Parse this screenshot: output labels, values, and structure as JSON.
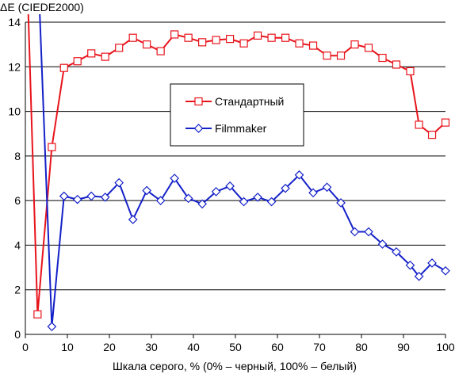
{
  "chart_data": {
    "type": "line",
    "title": "",
    "ylabel": "ΔE (CIEDE2000)",
    "xlabel": "Шкала серого, % (0% – черный, 100% – белый)",
    "xlim": [
      0,
      100
    ],
    "ylim": [
      0,
      14
    ],
    "xticks": [
      0,
      10,
      20,
      30,
      40,
      50,
      60,
      70,
      80,
      90,
      100
    ],
    "yticks": [
      0,
      2,
      4,
      6,
      8,
      10,
      12,
      14
    ],
    "grid": "horizontal",
    "legend_position": "center-right",
    "series": [
      {
        "name": "Стандартный",
        "color": "#e8141c",
        "marker": "square",
        "x": [
          0.6,
          2.9,
          6.3,
          9.2,
          12.4,
          15.7,
          19.0,
          22.3,
          25.6,
          28.9,
          32.2,
          35.5,
          38.8,
          42.1,
          45.4,
          48.7,
          52.0,
          55.3,
          58.6,
          61.9,
          65.2,
          68.5,
          71.8,
          75.1,
          78.4,
          81.7,
          85.0,
          88.3,
          91.6,
          93.7,
          96.8,
          100.0
        ],
        "y": [
          15.0,
          0.9,
          8.4,
          11.95,
          12.25,
          12.6,
          12.45,
          12.85,
          13.3,
          13.0,
          12.7,
          13.45,
          13.3,
          13.1,
          13.2,
          13.25,
          13.05,
          13.4,
          13.3,
          13.3,
          13.05,
          12.95,
          12.5,
          12.5,
          13.0,
          12.85,
          12.4,
          12.1,
          11.8,
          9.4,
          8.95,
          9.5
        ]
      },
      {
        "name": "Filmmaker",
        "color": "#1421c8",
        "marker": "diamond",
        "x": [
          3.3,
          6.3,
          9.2,
          12.4,
          15.7,
          19.0,
          22.3,
          25.6,
          28.9,
          32.2,
          35.5,
          38.8,
          42.1,
          45.4,
          48.7,
          52.0,
          55.3,
          58.6,
          61.9,
          65.2,
          68.5,
          71.8,
          75.1,
          78.4,
          81.7,
          85.0,
          88.3,
          91.6,
          93.7,
          96.8,
          100.0
        ],
        "y": [
          15.0,
          0.35,
          6.2,
          6.05,
          6.2,
          6.15,
          6.8,
          5.15,
          6.45,
          6.0,
          7.0,
          6.1,
          5.85,
          6.4,
          6.65,
          5.95,
          6.15,
          5.95,
          6.55,
          7.15,
          6.35,
          6.6,
          5.9,
          4.6,
          4.6,
          4.05,
          3.7,
          3.1,
          2.6,
          3.2,
          2.85
        ]
      }
    ]
  }
}
